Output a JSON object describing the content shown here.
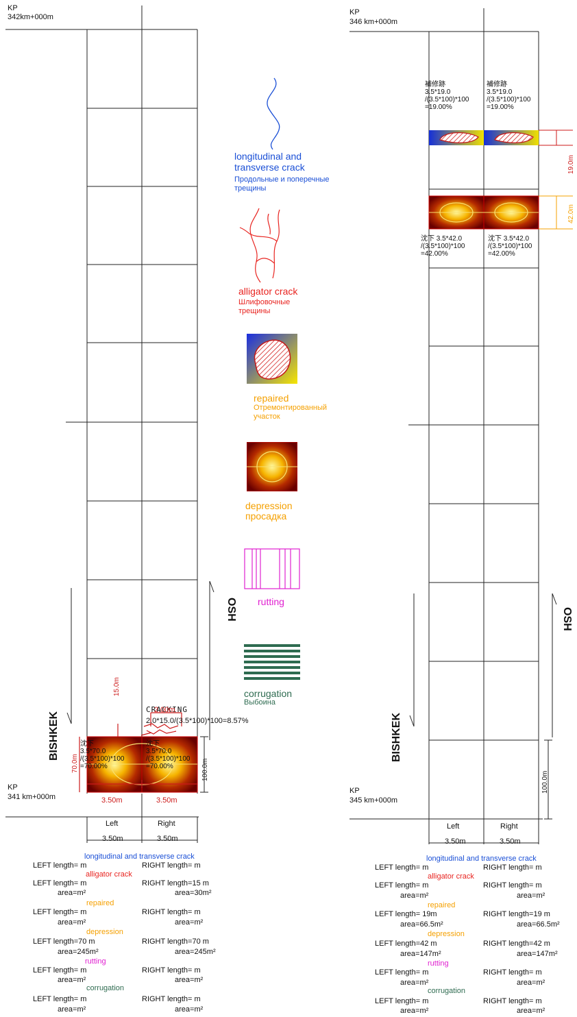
{
  "colors": {
    "blue": "#1a4fd6",
    "red": "#e8231f",
    "orange": "#f5a000",
    "magenta": "#e020d0",
    "green": "#2e6b50",
    "dim_red": "#cc1a1a"
  },
  "left_panel": {
    "kp_top": {
      "label": "KP",
      "value": "342km+000m"
    },
    "kp_bottom": {
      "label": "KP",
      "value": "341 km+000m"
    },
    "bishkek": "BISHKEK",
    "osh": "OSH",
    "cracking_label": "CRACKING",
    "cracking_formula": "2.0*15.0/(3.5*100)*100=8.57%",
    "dim_15": "15.0m",
    "dim_2": "2.00m",
    "dim_70": "70.0m",
    "dim_100": "100.0m",
    "dim_350_inner_left": "3.50m",
    "dim_350_inner_right": "3.50m",
    "dep_left": {
      "l1": "沈下",
      "l2": "3.5*70.0",
      "l3": "/(3.5*100)*100",
      "l4": "=70.00%"
    },
    "dep_right": {
      "l1": "沈下",
      "l2": "3.5*70.0",
      "l3": "/(3.5*100)*100",
      "l4": "=70.00%"
    },
    "col_left": "Left",
    "col_right": "Right",
    "width_left": "3.50m",
    "width_right": "3.50m"
  },
  "right_panel": {
    "kp_top": {
      "label": "KP",
      "value": "346 km+000m"
    },
    "kp_bottom": {
      "label": "KP",
      "value": "345 km+000m"
    },
    "bishkek": "BISHKEK",
    "osh": "OSH",
    "rep_left": {
      "l1": "補修跡",
      "l2": "3.5*19.0",
      "l3": "/(3.5*100)*100",
      "l4": "=19.00%"
    },
    "rep_right": {
      "l1": "補修跡",
      "l2": "3.5*19.0",
      "l3": "/(3.5*100)*100",
      "l4": "=19.00%"
    },
    "dep_left": {
      "l1": "沈下 3.5*42.0",
      "l2": "/(3.5*100)*100",
      "l3": "=42.00%"
    },
    "dep_right": {
      "l1": "沈下 3.5*42.0",
      "l2": "/(3.5*100)*100",
      "l3": "=42.00%"
    },
    "dim_19": "19.0m",
    "dim_42": "42.0m",
    "dim_100": "100.0m",
    "col_left": "Left",
    "col_right": "Right",
    "width_left": "3.50m",
    "width_right": "3.50m"
  },
  "legend": {
    "long_crack_en": "longitudinal and transverse crack",
    "long_crack_ru": "Продольные и поперечные трещины",
    "alligator_en": "alligator crack",
    "alligator_ru": "Шлифовочные трещины",
    "repaired_en": "repaired",
    "repaired_ru": "Отремонтированный участок",
    "depression_en": "depression",
    "depression_ru": "просадка",
    "rutting": "rutting",
    "corrugation_en": "corrugation",
    "corrugation_ru": "Выбоина"
  },
  "summary_left": {
    "h_long": "longitudinal and transverse crack",
    "h_alli": "alligator crack",
    "h_rep": "repaired",
    "h_dep": "depression",
    "h_rut": "rutting",
    "h_cor": "corrugation",
    "rows": [
      {
        "left_len": "LEFT  length= m",
        "right_len": "RIGHT  length= m",
        "left_area": "",
        "right_area": ""
      },
      {
        "left_len": "LEFT  length= m",
        "right_len": "RIGHT  length=15 m",
        "left_area": "area=m²",
        "right_area": "area=30m²"
      },
      {
        "left_len": "LEFT  length= m",
        "right_len": "RIGHT  length= m",
        "left_area": "area=m²",
        "right_area": "area=m²"
      },
      {
        "left_len": "LEFT  length=70 m",
        "right_len": "RIGHT  length=70 m",
        "left_area": "area=245m²",
        "right_area": "area=245m²"
      },
      {
        "left_len": "LEFT  length= m",
        "right_len": "RIGHT  length= m",
        "left_area": "area=m²",
        "right_area": "area=m²"
      },
      {
        "left_len": "LEFT  length= m",
        "right_len": "RIGHT  length= m",
        "left_area": "area=m²",
        "right_area": "area=m²"
      }
    ]
  },
  "summary_right": {
    "h_long": "longitudinal and transverse crack",
    "h_alli": "alligator crack",
    "h_rep": "repaired",
    "h_dep": "depression",
    "h_rut": "rutting",
    "h_cor": "corrugation",
    "rows": [
      {
        "left_len": "LEFT  length= m",
        "right_len": "RIGHT  length= m",
        "left_area": "",
        "right_area": ""
      },
      {
        "left_len": "LEFT  length= m",
        "right_len": "RIGHT  length= m",
        "left_area": "area=m²",
        "right_area": "area=m²"
      },
      {
        "left_len": "LEFT  length= 19m",
        "right_len": "RIGHT  length=19 m",
        "left_area": "area=66.5m²",
        "right_area": "area=66.5m²"
      },
      {
        "left_len": "LEFT  length=42 m",
        "right_len": "RIGHT  length=42 m",
        "left_area": "area=147m²",
        "right_area": "area=147m²"
      },
      {
        "left_len": "LEFT  length= m",
        "right_len": "RIGHT  length= m",
        "left_area": "area=m²",
        "right_area": "area=m²"
      },
      {
        "left_len": "LEFT  length= m",
        "right_len": "RIGHT  length= m",
        "left_area": "area=m²",
        "right_area": "area=m²"
      }
    ]
  }
}
